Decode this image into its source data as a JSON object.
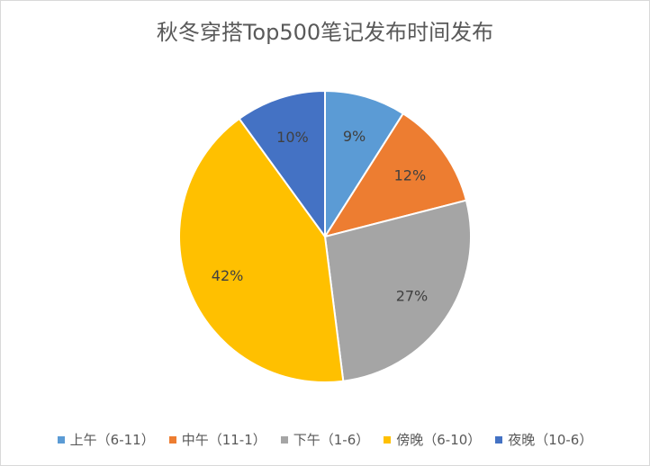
{
  "chart_data": {
    "type": "pie",
    "title": "秋冬穿搭Top500笔记发布时间发布",
    "categories": [
      "上午（6-11）",
      "中午（11-1）",
      "下午（1-6）",
      "傍晚（6-10）",
      "夜晚（10-6）"
    ],
    "values": [
      9,
      12,
      27,
      42,
      10
    ],
    "labels": [
      "9%",
      "12%",
      "27%",
      "42%",
      "10%"
    ],
    "colors": [
      "#5B9BD5",
      "#ED7D31",
      "#A5A5A5",
      "#FFC000",
      "#4472C4"
    ],
    "legend_position": "bottom"
  }
}
